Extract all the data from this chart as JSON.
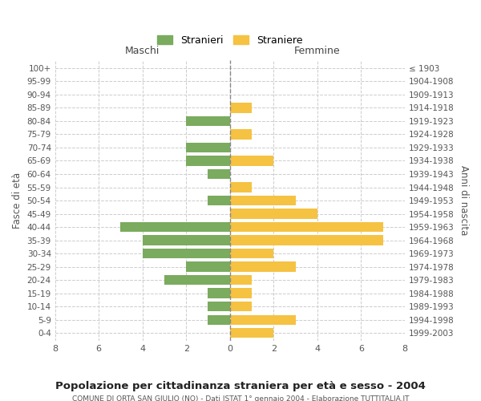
{
  "age_groups": [
    "100+",
    "95-99",
    "90-94",
    "85-89",
    "80-84",
    "75-79",
    "70-74",
    "65-69",
    "60-64",
    "55-59",
    "50-54",
    "45-49",
    "40-44",
    "35-39",
    "30-34",
    "25-29",
    "20-24",
    "15-19",
    "10-14",
    "5-9",
    "0-4"
  ],
  "birth_years": [
    "≤ 1903",
    "1904-1908",
    "1909-1913",
    "1914-1918",
    "1919-1923",
    "1924-1928",
    "1929-1933",
    "1934-1938",
    "1939-1943",
    "1944-1948",
    "1949-1953",
    "1954-1958",
    "1959-1963",
    "1964-1968",
    "1969-1973",
    "1974-1978",
    "1979-1983",
    "1984-1988",
    "1989-1993",
    "1994-1998",
    "1999-2003"
  ],
  "males": [
    0,
    0,
    0,
    0,
    2,
    0,
    2,
    2,
    1,
    0,
    1,
    0,
    5,
    4,
    4,
    2,
    3,
    1,
    1,
    1,
    0
  ],
  "females": [
    0,
    0,
    0,
    1,
    0,
    1,
    0,
    2,
    0,
    1,
    3,
    4,
    7,
    7,
    2,
    3,
    1,
    1,
    1,
    3,
    2
  ],
  "male_color": "#7aab5e",
  "female_color": "#f5c242",
  "background_color": "#ffffff",
  "grid_color": "#cccccc",
  "title": "Popolazione per cittadinanza straniera per età e sesso - 2004",
  "subtitle": "COMUNE DI ORTA SAN GIULIO (NO) - Dati ISTAT 1° gennaio 2004 - Elaborazione TUTTITALIA.IT",
  "xlabel_left": "Maschi",
  "xlabel_right": "Femmine",
  "ylabel_left": "Fasce di età",
  "ylabel_right": "Anni di nascita",
  "legend_male": "Stranieri",
  "legend_female": "Straniere",
  "xlim": 8,
  "bar_height": 0.75
}
